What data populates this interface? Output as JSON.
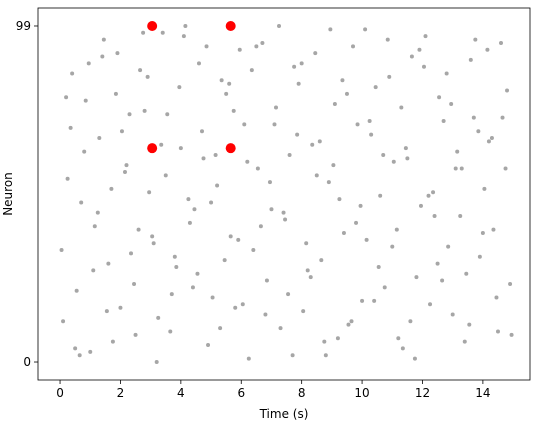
{
  "chart_data": {
    "type": "scatter",
    "xlabel": "Time (s)",
    "ylabel": "Neuron",
    "xlim": [
      -0.73,
      15.56
    ],
    "ylim": [
      -5.3,
      104.3
    ],
    "xticks": [
      0,
      2,
      4,
      6,
      8,
      10,
      12,
      14
    ],
    "yticks": [
      0,
      99
    ],
    "series": [
      {
        "color": "#a6a6a6",
        "marker_size": 2,
        "x": [
          0.1,
          0.4,
          0.7,
          1.0,
          1.3,
          1.6,
          1.9,
          2.2,
          2.5,
          2.8,
          3.1,
          3.4,
          3.7,
          4.0,
          4.3,
          4.6,
          4.9,
          5.2,
          5.5,
          5.8,
          6.1,
          6.4,
          6.7,
          7.0,
          7.3,
          7.6,
          7.9,
          8.2,
          8.5,
          8.8,
          9.1,
          9.4,
          9.7,
          10.0,
          10.3,
          10.6,
          10.9,
          11.2,
          11.5,
          11.8,
          12.1,
          12.4,
          12.7,
          13.0,
          13.3,
          13.6,
          13.9,
          14.2,
          14.5,
          14.8,
          0.25,
          0.55,
          0.85,
          1.15,
          1.45,
          1.75,
          2.05,
          2.35,
          2.65,
          2.95,
          3.25,
          3.55,
          3.85,
          4.15,
          4.45,
          4.75,
          5.05,
          5.35,
          5.65,
          5.95,
          6.25,
          6.55,
          6.85,
          7.15,
          7.45,
          7.75,
          8.05,
          8.35,
          8.65,
          8.95,
          9.25,
          9.55,
          9.85,
          10.15,
          10.45,
          10.75,
          11.05,
          11.35,
          11.65,
          11.95,
          12.25,
          12.55,
          12.85,
          13.15,
          13.45,
          13.75,
          14.05,
          14.35,
          14.65,
          14.95,
          0.05,
          0.35,
          0.65,
          0.95,
          1.25,
          1.55,
          1.85,
          2.15,
          2.45,
          2.75,
          3.05,
          3.35,
          3.65,
          3.95,
          4.25,
          4.55,
          4.85,
          5.15,
          5.45,
          5.75,
          6.05,
          6.35,
          6.65,
          6.95,
          7.25,
          7.55,
          7.85,
          8.15,
          8.45,
          8.75,
          9.05,
          9.35,
          9.65,
          9.95,
          10.25,
          10.55,
          10.85,
          11.15,
          11.45,
          11.75,
          12.05,
          12.35,
          12.65,
          12.95,
          13.25,
          13.55,
          13.85,
          14.15,
          14.45,
          14.75,
          0.2,
          0.5,
          0.8,
          1.1,
          1.4,
          1.7,
          2.0,
          2.3,
          2.6,
          2.9,
          3.2,
          3.5,
          3.8,
          4.1,
          4.4,
          4.7,
          5.0,
          5.3,
          5.6,
          5.9,
          6.2,
          6.5,
          6.8,
          7.1,
          7.4,
          7.7,
          8.0,
          8.3,
          8.6,
          8.9,
          9.2,
          9.5,
          9.8,
          10.1,
          10.4,
          10.7,
          11.0,
          11.3,
          11.6,
          11.9,
          12.2,
          12.5,
          12.8,
          13.1,
          13.4,
          13.7,
          14.0,
          14.3,
          14.6,
          14.9
        ],
        "values": [
          12,
          85,
          47,
          3,
          66,
          29,
          91,
          58,
          8,
          74,
          35,
          97,
          20,
          63,
          41,
          88,
          5,
          52,
          79,
          16,
          70,
          33,
          94,
          45,
          10,
          61,
          82,
          27,
          55,
          2,
          76,
          38,
          93,
          18,
          67,
          49,
          84,
          7,
          60,
          25,
          96,
          43,
          71,
          14,
          57,
          89,
          31,
          65,
          9,
          80,
          54,
          21,
          77,
          40,
          95,
          6,
          68,
          32,
          86,
          50,
          13,
          73,
          28,
          99,
          45,
          60,
          19,
          83,
          37,
          92,
          1,
          57,
          24,
          75,
          42,
          87,
          15,
          64,
          30,
          98,
          48,
          11,
          70,
          36,
          81,
          22,
          59,
          4,
          90,
          46,
          17,
          78,
          34,
          62,
          26,
          95,
          51,
          39,
          72,
          8,
          33,
          69,
          2,
          88,
          44,
          15,
          79,
          56,
          23,
          97,
          37,
          64,
          9,
          81,
          48,
          26,
          93,
          61,
          30,
          74,
          17,
          86,
          40,
          53,
          99,
          20,
          67,
          35,
          91,
          6,
          58,
          83,
          12,
          46,
          71,
          28,
          95,
          39,
          63,
          1,
          87,
          50,
          24,
          76,
          43,
          11,
          68,
          92,
          19,
          57,
          78,
          4,
          62,
          27,
          90,
          51,
          16,
          73,
          39,
          84,
          0,
          55,
          31,
          96,
          22,
          68,
          47,
          10,
          82,
          36,
          59,
          93,
          14,
          70,
          44,
          2,
          88,
          25,
          65,
          53,
          7,
          79,
          41,
          98,
          18,
          61,
          34,
          75,
          12,
          92,
          49,
          29,
          85,
          57,
          6,
          72,
          38,
          66,
          94,
          23
        ]
      },
      {
        "color": "#ff0000",
        "marker_size": 5,
        "x": [
          3.05,
          5.65,
          3.05,
          5.65
        ],
        "values": [
          99,
          99,
          63,
          63
        ]
      }
    ]
  }
}
